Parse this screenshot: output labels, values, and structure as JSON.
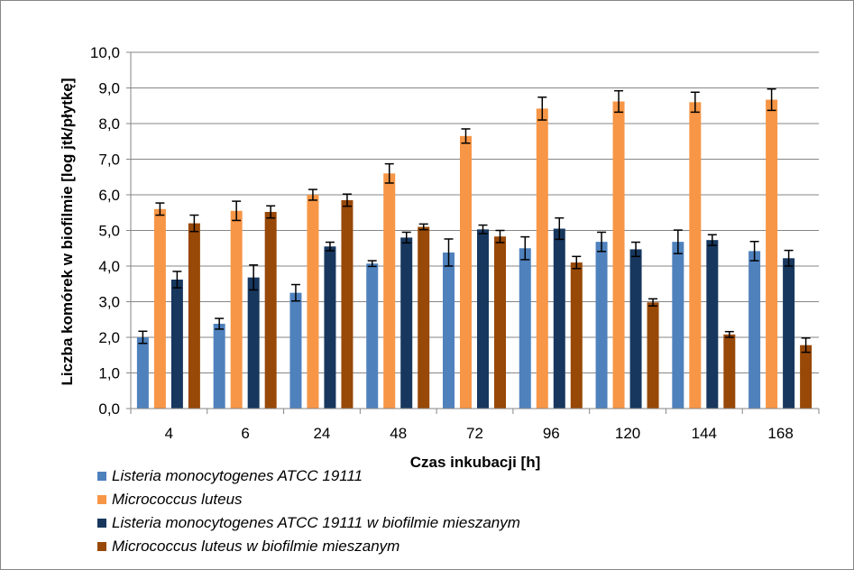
{
  "chart_data": {
    "type": "bar",
    "title": "",
    "xlabel": "Czas inkubacji [h]",
    "ylabel": "Liczba komórek w biofilmie [log jtk/płytkę]",
    "ylim": [
      0,
      10
    ],
    "ytick_step": 1,
    "ytick_labels": [
      "0,0",
      "1,0",
      "2,0",
      "3,0",
      "4,0",
      "5,0",
      "6,0",
      "7,0",
      "8,0",
      "9,0",
      "10,0"
    ],
    "grid": true,
    "legend_position": "bottom-left",
    "categories": [
      "4",
      "6",
      "24",
      "48",
      "72",
      "96",
      "120",
      "144",
      "168"
    ],
    "series": [
      {
        "name": "Listeria monocytogenes ATCC 19111",
        "color": "#4F81BD",
        "values": [
          2.0,
          2.38,
          3.25,
          4.07,
          4.38,
          4.5,
          4.68,
          4.68,
          4.42
        ],
        "errors": [
          0.17,
          0.15,
          0.23,
          0.08,
          0.38,
          0.32,
          0.27,
          0.33,
          0.27
        ]
      },
      {
        "name": "Micrococcus luteus",
        "color": "#F79646",
        "values": [
          5.6,
          5.55,
          6.0,
          6.6,
          7.65,
          8.42,
          8.62,
          8.6,
          8.67
        ],
        "errors": [
          0.17,
          0.27,
          0.15,
          0.27,
          0.2,
          0.32,
          0.3,
          0.28,
          0.3
        ]
      },
      {
        "name": "Listeria monocytogenes ATCC 19111 w biofilmie mieszanym",
        "color": "#17375E",
        "values": [
          3.62,
          3.68,
          4.55,
          4.8,
          5.03,
          5.05,
          4.47,
          4.73,
          4.22
        ],
        "errors": [
          0.23,
          0.35,
          0.12,
          0.15,
          0.12,
          0.3,
          0.2,
          0.15,
          0.22
        ]
      },
      {
        "name": "Micrococcus luteus w biofilmie mieszanym",
        "color": "#984807",
        "values": [
          5.2,
          5.52,
          5.85,
          5.1,
          4.83,
          4.1,
          2.98,
          2.08,
          1.78
        ],
        "errors": [
          0.23,
          0.17,
          0.17,
          0.08,
          0.17,
          0.17,
          0.1,
          0.08,
          0.2
        ]
      }
    ]
  }
}
